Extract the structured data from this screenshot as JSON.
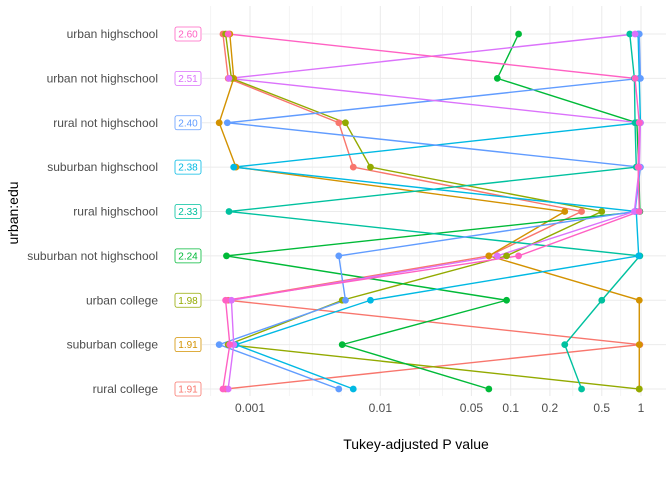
{
  "chart_data": {
    "type": "scatter",
    "title": "",
    "xlabel": "Tukey-adjusted P value",
    "ylabel": "urban:edu",
    "x_scale": "log",
    "xlim": [
      0.00045,
      1.3
    ],
    "x_ticks": [
      {
        "value": 0.001,
        "label": "0.001"
      },
      {
        "value": 0.01,
        "label": "0.01"
      },
      {
        "value": 0.05,
        "label": "0.05"
      },
      {
        "value": 0.1,
        "label": "0.1"
      },
      {
        "value": 0.2,
        "label": "0.2"
      },
      {
        "value": 0.5,
        "label": "0.5"
      },
      {
        "value": 1,
        "label": "1"
      }
    ],
    "x_minor_ticks": [
      0.0005,
      0.002,
      0.003,
      0.005,
      0.02,
      0.03,
      0.3,
      0.7
    ],
    "grid": true,
    "legend": "none",
    "categories": [
      "rural college",
      "suburban college",
      "urban college",
      "suburban not highschool",
      "rural highschool",
      "suburban highschool",
      "rural not highschool",
      "urban not highschool",
      "urban highschool"
    ],
    "badges": [
      {
        "label": "1.91",
        "color": "#F8766D"
      },
      {
        "label": "1.91",
        "color": "#D39200"
      },
      {
        "label": "1.98",
        "color": "#93AA00"
      },
      {
        "label": "2.24",
        "color": "#00BA38"
      },
      {
        "label": "2.33",
        "color": "#00C19F"
      },
      {
        "label": "2.38",
        "color": "#00B9E3"
      },
      {
        "label": "2.40",
        "color": "#619CFF"
      },
      {
        "label": "2.51",
        "color": "#DB72FB"
      },
      {
        "label": "2.60",
        "color": "#FF61C3"
      }
    ],
    "series": [
      {
        "color": "#F8766D",
        "points": [
          {
            "group": "rural college",
            "p": 0.00065
          },
          {
            "group": "suburban college",
            "p": 0.98
          },
          {
            "group": "urban college",
            "p": 0.00068
          },
          {
            "group": "suburban not highschool",
            "p": 0.068
          },
          {
            "group": "rural highschool",
            "p": 0.35
          },
          {
            "group": "suburban highschool",
            "p": 0.0062
          },
          {
            "group": "rural not highschool",
            "p": 0.0048
          },
          {
            "group": "urban not highschool",
            "p": 0.00068
          },
          {
            "group": "urban highschool",
            "p": 0.00062
          }
        ]
      },
      {
        "color": "#D39200",
        "points": [
          {
            "group": "rural college",
            "p": 0.97
          },
          {
            "group": "suburban college",
            "p": 0.97
          },
          {
            "group": "urban college",
            "p": 0.97
          },
          {
            "group": "suburban not highschool",
            "p": 0.068
          },
          {
            "group": "rural highschool",
            "p": 0.26
          },
          {
            "group": "suburban highschool",
            "p": 0.00078
          },
          {
            "group": "rural not highschool",
            "p": 0.00058
          },
          {
            "group": "urban not highschool",
            "p": 0.00075
          },
          {
            "group": "urban highschool",
            "p": 0.0007
          }
        ]
      },
      {
        "color": "#93AA00",
        "points": [
          {
            "group": "rural college",
            "p": 0.97
          },
          {
            "group": "suburban college",
            "p": 0.00068
          },
          {
            "group": "urban college",
            "p": 0.0051
          },
          {
            "group": "suburban not highschool",
            "p": 0.093
          },
          {
            "group": "rural highschool",
            "p": 0.5
          },
          {
            "group": "suburban highschool",
            "p": 0.0084
          },
          {
            "group": "rural not highschool",
            "p": 0.0054
          },
          {
            "group": "urban not highschool",
            "p": 0.00072
          },
          {
            "group": "urban highschool",
            "p": 0.00065
          }
        ]
      },
      {
        "color": "#00BA38",
        "points": [
          {
            "group": "rural college",
            "p": 0.068
          },
          {
            "group": "suburban college",
            "p": 0.0051
          },
          {
            "group": "urban college",
            "p": 0.093
          },
          {
            "group": "suburban not highschool",
            "p": 0.00066
          },
          {
            "group": "rural highschool",
            "p": 0.98
          },
          {
            "group": "suburban highschool",
            "p": 0.96
          },
          {
            "group": "rural not highschool",
            "p": 0.93
          },
          {
            "group": "urban not highschool",
            "p": 0.079
          },
          {
            "group": "urban highschool",
            "p": 0.115
          }
        ]
      },
      {
        "color": "#00C19F",
        "points": [
          {
            "group": "rural college",
            "p": 0.35
          },
          {
            "group": "suburban college",
            "p": 0.26
          },
          {
            "group": "urban college",
            "p": 0.5
          },
          {
            "group": "suburban not highschool",
            "p": 0.98
          },
          {
            "group": "rural highschool",
            "p": 0.00069
          },
          {
            "group": "suburban highschool",
            "p": 0.92
          },
          {
            "group": "rural not highschool",
            "p": 0.9
          },
          {
            "group": "urban not highschool",
            "p": 0.89
          },
          {
            "group": "urban highschool",
            "p": 0.82
          }
        ]
      },
      {
        "color": "#00B9E3",
        "points": [
          {
            "group": "rural college",
            "p": 0.0062
          },
          {
            "group": "suburban college",
            "p": 0.00078
          },
          {
            "group": "urban college",
            "p": 0.0084
          },
          {
            "group": "suburban not highschool",
            "p": 0.96
          },
          {
            "group": "rural highschool",
            "p": 0.92
          },
          {
            "group": "suburban highschool",
            "p": 0.00075
          },
          {
            "group": "rural not highschool",
            "p": 0.99
          },
          {
            "group": "urban not highschool",
            "p": 0.97
          },
          {
            "group": "urban highschool",
            "p": 0.95
          }
        ]
      },
      {
        "color": "#619CFF",
        "points": [
          {
            "group": "rural college",
            "p": 0.0048
          },
          {
            "group": "suburban college",
            "p": 0.00058
          },
          {
            "group": "urban college",
            "p": 0.0054
          },
          {
            "group": "suburban not highschool",
            "p": 0.0048
          },
          {
            "group": "rural highschool",
            "p": 0.9
          },
          {
            "group": "suburban highschool",
            "p": 0.99
          },
          {
            "group": "rural not highschool",
            "p": 0.00067
          },
          {
            "group": "urban not highschool",
            "p": 0.99
          },
          {
            "group": "urban highschool",
            "p": 0.97
          }
        ]
      },
      {
        "color": "#DB72FB",
        "points": [
          {
            "group": "rural college",
            "p": 0.00068
          },
          {
            "group": "suburban college",
            "p": 0.00075
          },
          {
            "group": "urban college",
            "p": 0.00072
          },
          {
            "group": "suburban not highschool",
            "p": 0.079
          },
          {
            "group": "rural highschool",
            "p": 0.89
          },
          {
            "group": "suburban highschool",
            "p": 0.97
          },
          {
            "group": "rural not highschool",
            "p": 0.99
          },
          {
            "group": "urban not highschool",
            "p": 0.00069
          },
          {
            "group": "urban highschool",
            "p": 0.9
          }
        ]
      },
      {
        "color": "#FF61C3",
        "points": [
          {
            "group": "rural college",
            "p": 0.00062
          },
          {
            "group": "suburban college",
            "p": 0.0007
          },
          {
            "group": "urban college",
            "p": 0.00065
          },
          {
            "group": "suburban not highschool",
            "p": 0.115
          },
          {
            "group": "rural highschool",
            "p": 0.97
          },
          {
            "group": "suburban highschool",
            "p": 0.95
          },
          {
            "group": "rural not highschool",
            "p": 0.97
          },
          {
            "group": "urban not highschool",
            "p": 0.9
          },
          {
            "group": "urban highschool",
            "p": 0.00068
          }
        ]
      }
    ]
  }
}
